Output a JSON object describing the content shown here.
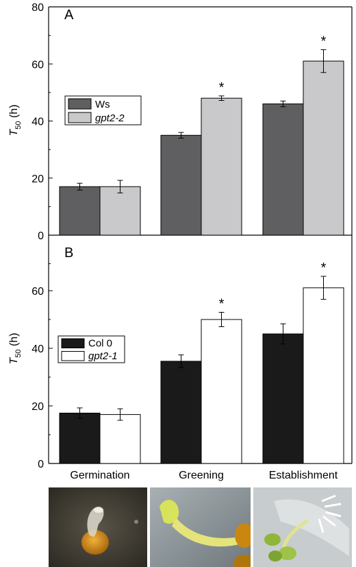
{
  "chart_data": [
    {
      "type": "bar",
      "panel": "A",
      "categories": [
        "Germination",
        "Greening",
        "Establishment"
      ],
      "ylabel": "T50 (h)",
      "ylabel_main": "T",
      "ylabel_sub": "50",
      "ylabel_unit": " (h)",
      "ylim": [
        0,
        80
      ],
      "yticks": [
        "0",
        "20",
        "40",
        "60",
        "80"
      ],
      "legend_position": "middle-left",
      "series": [
        {
          "name": "Ws",
          "color": "#5f5f61",
          "values": [
            17,
            35,
            46
          ],
          "errors": [
            1.2,
            1.0,
            1.0
          ]
        },
        {
          "name": "gpt2-2",
          "color": "#c9c9cb",
          "values": [
            17,
            48,
            61
          ],
          "errors": [
            2.2,
            0.8,
            4.0
          ]
        }
      ],
      "significance": [
        "",
        "*",
        "*"
      ]
    },
    {
      "type": "bar",
      "panel": "B",
      "categories": [
        "Germination",
        "Greening",
        "Establishment"
      ],
      "ylabel": "T50 (h)",
      "ylabel_main": "T",
      "ylabel_sub": "50",
      "ylabel_unit": " (h)",
      "ylim": [
        0,
        70
      ],
      "yticks": [
        "0",
        "20",
        "40",
        "60"
      ],
      "legend_position": "middle-left",
      "series": [
        {
          "name": "Col 0",
          "color": "#1a1a1a",
          "values": [
            17.5,
            35.5,
            45
          ],
          "errors": [
            1.8,
            2.2,
            3.5
          ]
        },
        {
          "name": "gpt2-1",
          "color": "#ffffff",
          "values": [
            17,
            50,
            61
          ],
          "errors": [
            2.0,
            2.5,
            4.0
          ]
        }
      ],
      "significance": [
        "",
        "*",
        "*"
      ]
    }
  ],
  "x_axis_labels": [
    "Germination",
    "Greening",
    "Establishment"
  ],
  "photos": [
    {
      "icon": "germinating-seed-photo"
    },
    {
      "icon": "greening-seedling-photo"
    },
    {
      "icon": "established-seedling-photo"
    }
  ]
}
